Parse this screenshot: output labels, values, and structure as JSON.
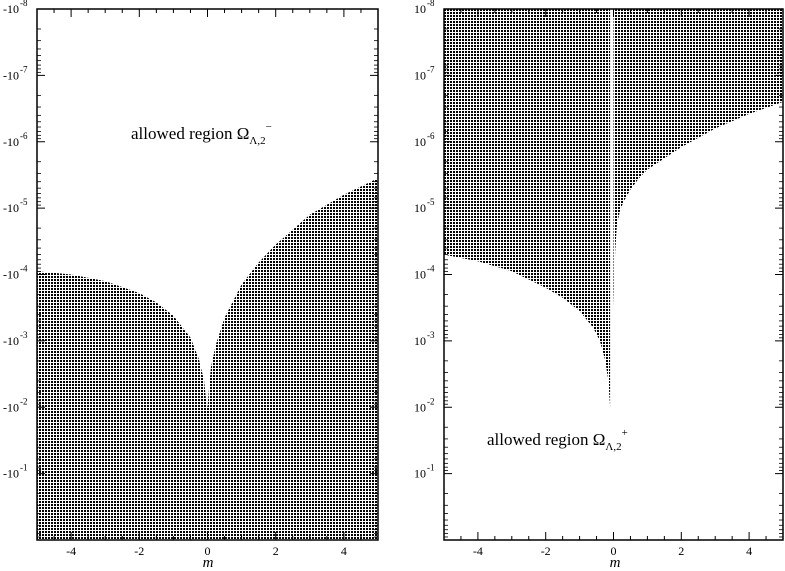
{
  "chart_data": [
    {
      "type": "area",
      "xlabel": "m",
      "xlim": [
        -5,
        5
      ],
      "y_scale": "log-reversed-negative",
      "ylim_exponents": [
        -8,
        0
      ],
      "x_ticks": [
        {
          "value": -4,
          "label": "-4"
        },
        {
          "value": -2,
          "label": "-2"
        },
        {
          "value": 0,
          "label": "0"
        },
        {
          "value": 2,
          "label": "2"
        },
        {
          "value": 4,
          "label": "4"
        }
      ],
      "y_ticks": [
        {
          "exp": -8,
          "base": "-10",
          "sup": "-8"
        },
        {
          "exp": -7,
          "base": "-10",
          "sup": "-7"
        },
        {
          "exp": -6,
          "base": "-10",
          "sup": "-6"
        },
        {
          "exp": -5,
          "base": "-10",
          "sup": "-5"
        },
        {
          "exp": -4,
          "base": "-10",
          "sup": "-4"
        },
        {
          "exp": -3,
          "base": "-10",
          "sup": "-3"
        },
        {
          "exp": -2,
          "base": "-10",
          "sup": "-2"
        },
        {
          "exp": -1,
          "base": "-10",
          "sup": "-1"
        }
      ],
      "boundary": {
        "x": [
          -5,
          -4,
          -3,
          -2,
          -1.5,
          -1,
          -0.5,
          -0.25,
          -0.1,
          -0.03,
          0,
          0.03,
          0.1,
          0.25,
          0.5,
          1,
          1.5,
          2,
          3,
          4,
          5
        ],
        "exp": [
          -4.05,
          -4.0,
          -3.9,
          -3.72,
          -3.58,
          -3.38,
          -3.05,
          -2.72,
          -2.4,
          -2.05,
          -2.0,
          -2.2,
          -2.6,
          -2.95,
          -3.35,
          -3.85,
          -4.18,
          -4.45,
          -4.9,
          -5.2,
          -5.45
        ]
      },
      "shaded": "below boundary (disallowed)",
      "annotation": {
        "text": "allowed region Ω",
        "sub": "Λ,2",
        "sup": "−"
      }
    },
    {
      "type": "area",
      "xlabel": "m",
      "xlim": [
        -5,
        5
      ],
      "y_scale": "log-reversed",
      "ylim_exponents": [
        -8,
        0
      ],
      "x_ticks": [
        {
          "value": -4,
          "label": "-4"
        },
        {
          "value": -2,
          "label": "-2"
        },
        {
          "value": 0,
          "label": "0"
        },
        {
          "value": 2,
          "label": "2"
        },
        {
          "value": 4,
          "label": "4"
        }
      ],
      "y_ticks": [
        {
          "exp": -1,
          "base": "10",
          "sup": "-1"
        },
        {
          "exp": -2,
          "base": "10",
          "sup": "-2"
        },
        {
          "exp": -3,
          "base": "10",
          "sup": "-3"
        },
        {
          "exp": -4,
          "base": "10",
          "sup": "-4"
        },
        {
          "exp": -5,
          "base": "10",
          "sup": "-5"
        },
        {
          "exp": -6,
          "base": "10",
          "sup": "-6"
        },
        {
          "exp": -7,
          "base": "10",
          "sup": "-7"
        },
        {
          "exp": -8,
          "base": "10",
          "sup": "-8"
        }
      ],
      "left_branch": {
        "x": [
          -5,
          -4,
          -3,
          -2,
          -1.5,
          -1,
          -0.6,
          -0.4,
          -0.25,
          -0.15,
          -0.1
        ],
        "exp": [
          -4.3,
          -4.2,
          -4.05,
          -3.8,
          -3.65,
          -3.45,
          -3.2,
          -3.0,
          -2.72,
          -2.4,
          -2.0
        ]
      },
      "right_branch": {
        "x": [
          0,
          0.02,
          0.05,
          0.1,
          0.2,
          0.3,
          0.5,
          0.75,
          1,
          1.5,
          2,
          3,
          4,
          5
        ],
        "exp": [
          -3.5,
          -3.9,
          -4.35,
          -4.75,
          -4.98,
          -5.1,
          -5.28,
          -5.45,
          -5.58,
          -5.75,
          -5.92,
          -6.2,
          -6.42,
          -6.6
        ]
      },
      "shaded": "above boundaries (disallowed)",
      "annotation": {
        "text": "allowed region Ω",
        "sub": "Λ,2",
        "sup": "+"
      }
    }
  ]
}
